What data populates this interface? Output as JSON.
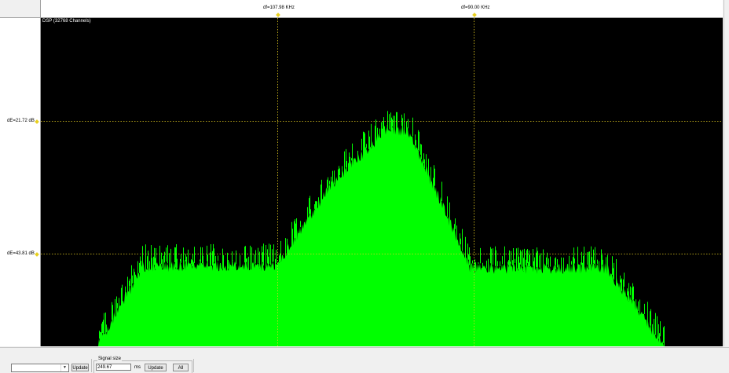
{
  "plot": {
    "title": "DSP (32768 Channels)",
    "background": "#000000",
    "trace_color": "#00ff00",
    "cursor_color": "#e8d020"
  },
  "cursors": {
    "freq1_label": "df=107.98 KHz",
    "freq2_label": "df=90.00 KHz",
    "db1_label": "dE=21.72 dB",
    "db2_label": "dE=43.81 dB"
  },
  "controls": {
    "dropdown_value": "",
    "update1_label": "Update",
    "signal_size_label": "Signal size",
    "signal_size_value": "249.67",
    "signal_size_unit": "ms",
    "update2_label": "Update",
    "all_label": "All"
  }
}
